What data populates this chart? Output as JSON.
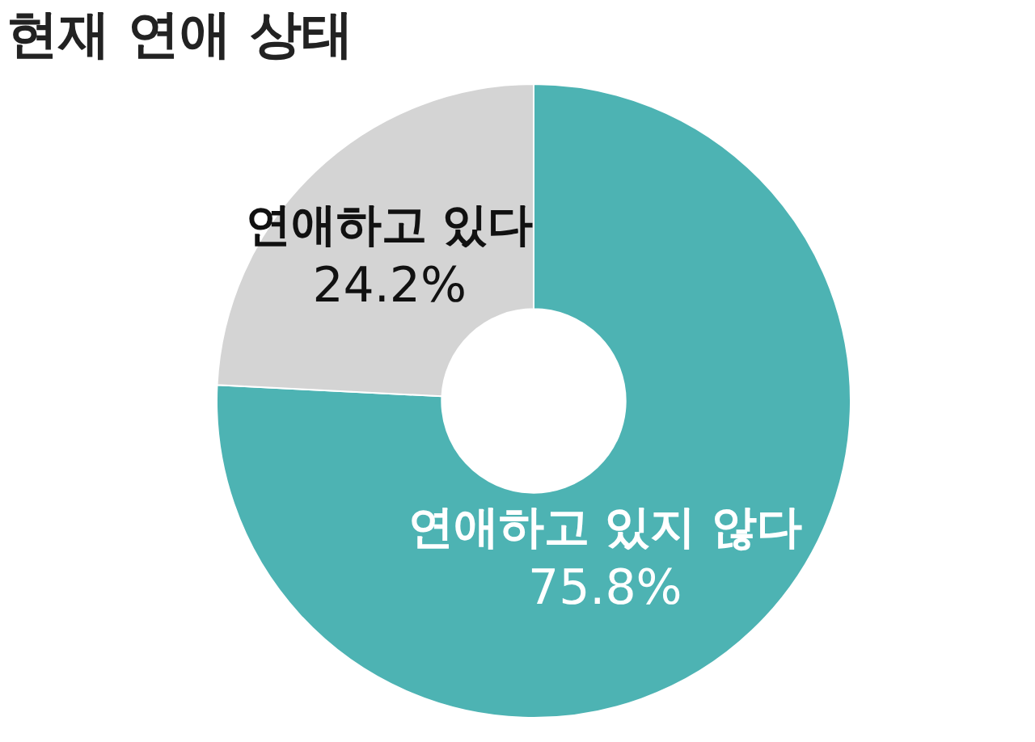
{
  "chart_data": {
    "type": "donut",
    "title": "현재 연애 상태",
    "categories": [
      "연애하고 있지 않다",
      "연애하고 있다"
    ],
    "values": [
      75.8,
      24.2
    ],
    "colors": [
      "#4db3b3",
      "#d4d4d4"
    ],
    "value_labels": [
      "75.8%",
      "24.2%"
    ]
  }
}
